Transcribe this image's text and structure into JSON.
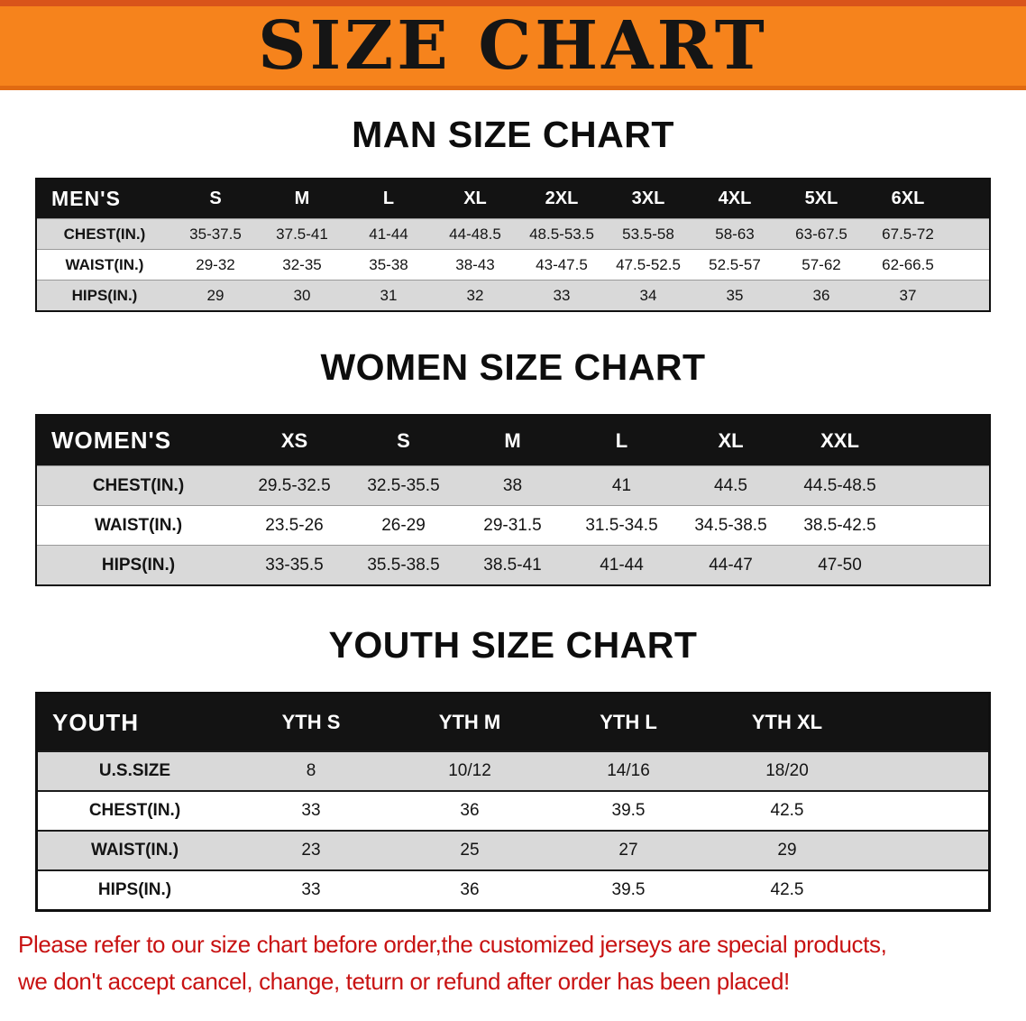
{
  "banner": {
    "title": "SIZE CHART"
  },
  "colors": {
    "banner_background": "#F6831C",
    "banner_accent": "#D9541A",
    "table_header_background": "#131313",
    "row_shade": "#D9D9D9",
    "disclaimer_red": "#C81212"
  },
  "sections": [
    {
      "id": "men",
      "heading": "MAN SIZE CHART",
      "table": {
        "header": [
          "MEN'S",
          "S",
          "M",
          "L",
          "XL",
          "2XL",
          "3XL",
          "4XL",
          "5XL",
          "6XL"
        ],
        "rows": [
          [
            "CHEST(IN.)",
            "35-37.5",
            "37.5-41",
            "41-44",
            "44-48.5",
            "48.5-53.5",
            "53.5-58",
            "58-63",
            "63-67.5",
            "67.5-72"
          ],
          [
            "WAIST(IN.)",
            "29-32",
            "32-35",
            "35-38",
            "38-43",
            "43-47.5",
            "47.5-52.5",
            "52.5-57",
            "57-62",
            "62-66.5"
          ],
          [
            "HIPS(IN.)",
            "29",
            "30",
            "31",
            "32",
            "33",
            "34",
            "35",
            "36",
            "37"
          ]
        ]
      }
    },
    {
      "id": "women",
      "heading": "WOMEN SIZE CHART",
      "table": {
        "header": [
          "WOMEN'S",
          "XS",
          "S",
          "M",
          "L",
          "XL",
          "XXL"
        ],
        "rows": [
          [
            "CHEST(IN.)",
            "29.5-32.5",
            "32.5-35.5",
            "38",
            "41",
            "44.5",
            "44.5-48.5"
          ],
          [
            "WAIST(IN.)",
            "23.5-26",
            "26-29",
            "29-31.5",
            "31.5-34.5",
            "34.5-38.5",
            "38.5-42.5"
          ],
          [
            "HIPS(IN.)",
            "33-35.5",
            "35.5-38.5",
            "38.5-41",
            "41-44",
            "44-47",
            "47-50"
          ]
        ]
      }
    },
    {
      "id": "youth",
      "heading": "YOUTH SIZE CHART",
      "table": {
        "header": [
          "YOUTH",
          "YTH S",
          "YTH M",
          "YTH L",
          "YTH XL"
        ],
        "rows": [
          [
            "U.S.SIZE",
            "8",
            "10/12",
            "14/16",
            "18/20"
          ],
          [
            "CHEST(IN.)",
            "33",
            "36",
            "39.5",
            "42.5"
          ],
          [
            "WAIST(IN.)",
            "23",
            "25",
            "27",
            "29"
          ],
          [
            "HIPS(IN.)",
            "33",
            "36",
            "39.5",
            "42.5"
          ]
        ]
      }
    }
  ],
  "disclaimer": {
    "lines": [
      "Please refer to our size chart before order,the customized jerseys are special products,",
      "we don't accept cancel, change, teturn or refund after order has been placed!"
    ]
  }
}
